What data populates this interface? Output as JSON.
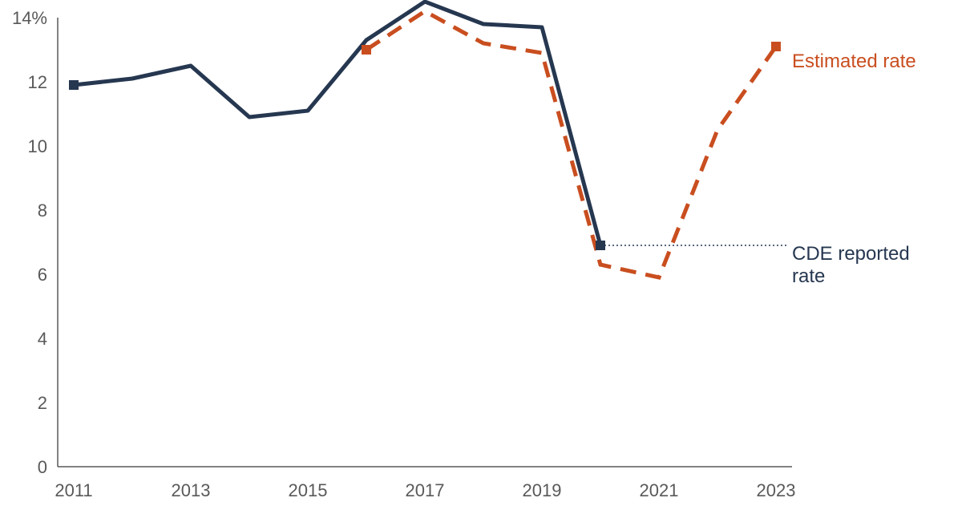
{
  "chart_data": {
    "type": "line",
    "title": "",
    "xlabel": "",
    "ylabel": "",
    "x": [
      2011,
      2012,
      2013,
      2014,
      2015,
      2016,
      2017,
      2018,
      2019,
      2020,
      2021,
      2022,
      2023
    ],
    "x_tick_labels": [
      "2011",
      "2013",
      "2015",
      "2017",
      "2019",
      "2021",
      "2023"
    ],
    "y_tick_labels": [
      "0",
      "2",
      "4",
      "6",
      "8",
      "10",
      "12",
      "14%"
    ],
    "xlim": [
      2011,
      2023
    ],
    "ylim": [
      0,
      14
    ],
    "grid": false,
    "series": [
      {
        "name": "CDE reported rate",
        "style": "solid",
        "color": "#263750",
        "x": [
          2011,
          2012,
          2013,
          2014,
          2015,
          2016,
          2017,
          2018,
          2019,
          2020
        ],
        "values": [
          11.9,
          12.1,
          12.5,
          10.9,
          11.1,
          13.3,
          14.5,
          13.8,
          13.7,
          6.9
        ]
      },
      {
        "name": "Estimated rate",
        "style": "dashed",
        "color": "#C94E1F",
        "x": [
          2016,
          2017,
          2018,
          2019,
          2020,
          2021,
          2022,
          2023
        ],
        "values": [
          13.0,
          14.2,
          13.2,
          12.9,
          6.3,
          5.9,
          10.5,
          13.1
        ]
      }
    ],
    "annotations": {
      "estimated_label": "Estimated rate",
      "cde_label_line1": "CDE reported",
      "cde_label_line2": "rate"
    }
  }
}
